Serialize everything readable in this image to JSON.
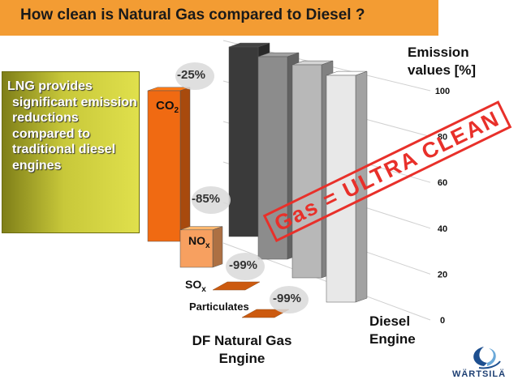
{
  "title": "How clean is Natural Gas compared to Diesel  ?",
  "callout": "LNG provides significant emission reductions compared to traditional diesel engines",
  "axis_title": [
    "Emission",
    "values [%]"
  ],
  "stamp": "Gas = ULTRA CLEAN",
  "group_labels": {
    "gas": [
      "DF Natural Gas",
      "Engine"
    ],
    "diesel": [
      "Diesel",
      "Engine"
    ]
  },
  "pollutant_labels": {
    "co2": "CO",
    "co2_sub": "2",
    "nox": "NO",
    "nox_sub": "x",
    "sox": "SO",
    "sox_sub": "x",
    "particulates": "Particulates"
  },
  "reductions": {
    "co2": "-25%",
    "nox": "-85%",
    "sox": "-99%",
    "particulates": "-99%"
  },
  "logo_text": "WÄRTSILÄ",
  "colors": {
    "title_bar": "#f39c33",
    "gas_bars": "#f06a12",
    "diesel_bars": [
      "#3a3a3a",
      "#8c8c8c",
      "#b8b8b8",
      "#e8e8e8"
    ],
    "callout": "#c8c83a",
    "stamp": "#e8302a"
  },
  "chart_data": {
    "type": "bar",
    "categories": [
      "CO2",
      "NOx",
      "SOx",
      "Particulates"
    ],
    "series": [
      {
        "name": "DF Natural Gas Engine",
        "values": [
          75,
          15,
          1,
          1
        ]
      },
      {
        "name": "Diesel Engine",
        "values": [
          100,
          100,
          100,
          100
        ]
      }
    ],
    "ylabel": "Emission values [%]",
    "yticks": [
      0,
      20,
      40,
      60,
      80,
      100
    ],
    "ylim": [
      0,
      100
    ],
    "grid": true,
    "style": "3d"
  }
}
